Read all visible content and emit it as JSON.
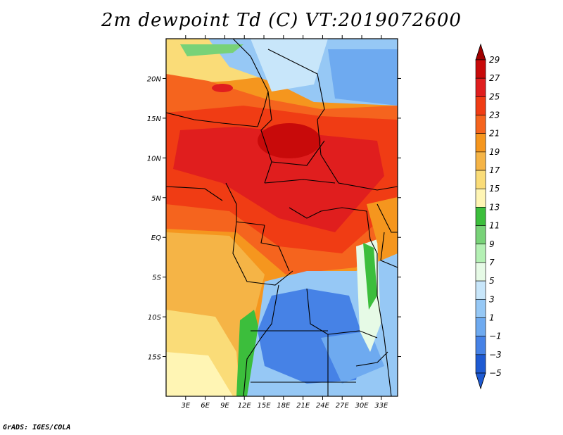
{
  "title": "2m dewpoint Td (C) VT:2019072600",
  "footer": "GrADS: IGES/COLA",
  "map": {
    "lon_range": [
      0,
      35.5
    ],
    "lat_range": [
      -20,
      25
    ],
    "lon_ticks": [
      {
        "value": 3,
        "label": "3E"
      },
      {
        "value": 6,
        "label": "6E"
      },
      {
        "value": 9,
        "label": "9E"
      },
      {
        "value": 12,
        "label": "12E"
      },
      {
        "value": 15,
        "label": "15E"
      },
      {
        "value": 18,
        "label": "18E"
      },
      {
        "value": 21,
        "label": "21E"
      },
      {
        "value": 24,
        "label": "24E"
      },
      {
        "value": 27,
        "label": "27E"
      },
      {
        "value": 30,
        "label": "30E"
      },
      {
        "value": 33,
        "label": "33E"
      }
    ],
    "lat_ticks": [
      {
        "value": 20,
        "label": "20N"
      },
      {
        "value": 15,
        "label": "15N"
      },
      {
        "value": 10,
        "label": "10N"
      },
      {
        "value": 5,
        "label": "5N"
      },
      {
        "value": 0,
        "label": "EQ"
      },
      {
        "value": -5,
        "label": "5S"
      },
      {
        "value": -10,
        "label": "10S"
      },
      {
        "value": -15,
        "label": "15S"
      }
    ]
  },
  "colorbar": {
    "levels": [
      {
        "label": "29",
        "color": "#a00000"
      },
      {
        "label": "27",
        "color": "#c80a0a"
      },
      {
        "label": "25",
        "color": "#e01e1e"
      },
      {
        "label": "23",
        "color": "#f03c14"
      },
      {
        "label": "21",
        "color": "#f5641e"
      },
      {
        "label": "19",
        "color": "#f5961e"
      },
      {
        "label": "17",
        "color": "#f5b446"
      },
      {
        "label": "15",
        "color": "#fadc78"
      },
      {
        "label": "13",
        "color": "#fff5b4"
      },
      {
        "label": "11",
        "color": "#3cbe3c"
      },
      {
        "label": "9",
        "color": "#78d278"
      },
      {
        "label": "7",
        "color": "#b4f0b4"
      },
      {
        "label": "5",
        "color": "#e6fae6"
      },
      {
        "label": "3",
        "color": "#c8e6fa"
      },
      {
        "label": "1",
        "color": "#96c8f5"
      },
      {
        "label": "−1",
        "color": "#6eaaf0"
      },
      {
        "label": "−3",
        "color": "#4682e6"
      },
      {
        "label": "−5",
        "color": "#1e5ad2"
      }
    ],
    "top_color": "#a00000",
    "bottom_color": "#1e5ad2"
  }
}
